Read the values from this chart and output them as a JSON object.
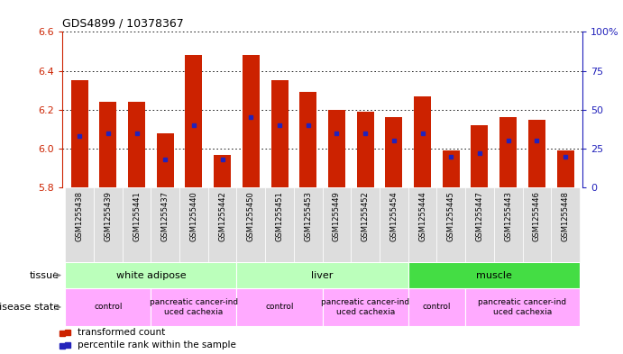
{
  "title": "GDS4899 / 10378367",
  "samples": [
    "GSM1255438",
    "GSM1255439",
    "GSM1255441",
    "GSM1255437",
    "GSM1255440",
    "GSM1255442",
    "GSM1255450",
    "GSM1255451",
    "GSM1255453",
    "GSM1255449",
    "GSM1255452",
    "GSM1255454",
    "GSM1255444",
    "GSM1255445",
    "GSM1255447",
    "GSM1255443",
    "GSM1255446",
    "GSM1255448"
  ],
  "transformed_count": [
    6.35,
    6.24,
    6.24,
    6.08,
    6.48,
    5.97,
    6.48,
    6.35,
    6.29,
    6.2,
    6.19,
    6.16,
    6.27,
    5.99,
    6.12,
    6.16,
    6.15,
    5.99
  ],
  "percentile_rank": [
    33,
    35,
    35,
    18,
    40,
    18,
    45,
    40,
    40,
    35,
    35,
    30,
    35,
    20,
    22,
    30,
    30,
    20
  ],
  "ylim_left": [
    5.8,
    6.6
  ],
  "ylim_right": [
    0,
    100
  ],
  "yticks_left": [
    5.8,
    6.0,
    6.2,
    6.4,
    6.6
  ],
  "yticks_right": [
    0,
    25,
    50,
    75,
    100
  ],
  "ytick_labels_right": [
    "0",
    "25",
    "50",
    "75",
    "100%"
  ],
  "bar_color": "#cc2200",
  "dot_color": "#2222bb",
  "bar_bottom": 5.8,
  "tissue_groups": [
    {
      "label": "white adipose",
      "start": 0,
      "end": 5,
      "color": "#bbffbb"
    },
    {
      "label": "liver",
      "start": 6,
      "end": 11,
      "color": "#bbffbb"
    },
    {
      "label": "muscle",
      "start": 12,
      "end": 17,
      "color": "#44dd44"
    }
  ],
  "disease_groups": [
    {
      "label": "control",
      "start": 0,
      "end": 2,
      "color": "#ffaaff"
    },
    {
      "label": "pancreatic cancer-ind\nuced cachexia",
      "start": 3,
      "end": 5,
      "color": "#ffaaff"
    },
    {
      "label": "control",
      "start": 6,
      "end": 8,
      "color": "#ffaaff"
    },
    {
      "label": "pancreatic cancer-ind\nuced cachexia",
      "start": 9,
      "end": 11,
      "color": "#ffaaff"
    },
    {
      "label": "control",
      "start": 12,
      "end": 13,
      "color": "#ffaaff"
    },
    {
      "label": "pancreatic cancer-ind\nuced cachexia",
      "start": 14,
      "end": 17,
      "color": "#ffaaff"
    }
  ],
  "bg_color": "#ffffff",
  "tick_label_color_left": "#cc2200",
  "tick_label_color_right": "#2222bb",
  "xtick_bg": "#dddddd"
}
